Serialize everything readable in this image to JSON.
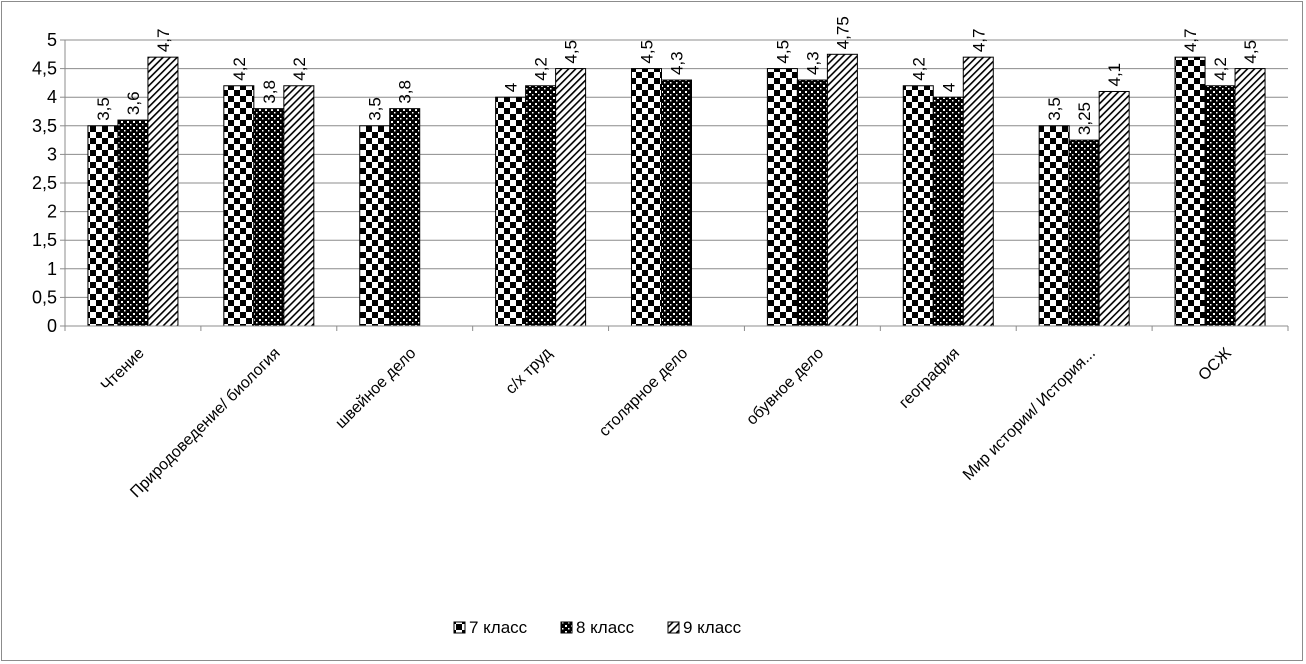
{
  "chart_data": {
    "type": "bar",
    "categories": [
      "Чтение",
      "Природоведение/ биология",
      "швейное дело",
      "с/х труд",
      "столярное дело",
      "обувное дело",
      "география",
      "Мир истории/ История...",
      "ОСЖ"
    ],
    "series": [
      {
        "name": "7 класс",
        "pattern": "checker",
        "values": [
          3.5,
          4.2,
          3.5,
          4,
          4.5,
          4.5,
          4.2,
          3.5,
          4.7
        ],
        "labels": [
          "3,5",
          "4,2",
          "3,5",
          "4",
          "4,5",
          "4,5",
          "4,2",
          "3,5",
          "4,7"
        ]
      },
      {
        "name": "8 класс",
        "pattern": "dotted-dark",
        "values": [
          3.6,
          3.8,
          3.8,
          4.2,
          4.3,
          4.3,
          4,
          3.25,
          4.2
        ],
        "labels": [
          "3,6",
          "3,8",
          "3,8",
          "4,2",
          "4,3",
          "4,3",
          "4",
          "3,25",
          "4,2"
        ]
      },
      {
        "name": "9 класс",
        "pattern": "hatched",
        "values": [
          4.7,
          4.2,
          null,
          4.5,
          null,
          4.75,
          4.7,
          4.1,
          4.5
        ],
        "labels": [
          "4,7",
          "4,2",
          null,
          "4,5",
          null,
          "4,75",
          "4,7",
          "4,1",
          "4,5"
        ]
      }
    ],
    "ylim": [
      0,
      5
    ],
    "yticks": [
      0,
      0.5,
      1,
      1.5,
      2,
      2.5,
      3,
      3.5,
      4,
      4.5,
      5
    ],
    "ytick_labels": [
      "0",
      "0,5",
      "1",
      "1,5",
      "2",
      "2,5",
      "3",
      "3,5",
      "4",
      "4,5",
      "5"
    ],
    "grid": true,
    "legend_position": "bottom",
    "title": "",
    "xlabel": "",
    "ylabel": ""
  }
}
